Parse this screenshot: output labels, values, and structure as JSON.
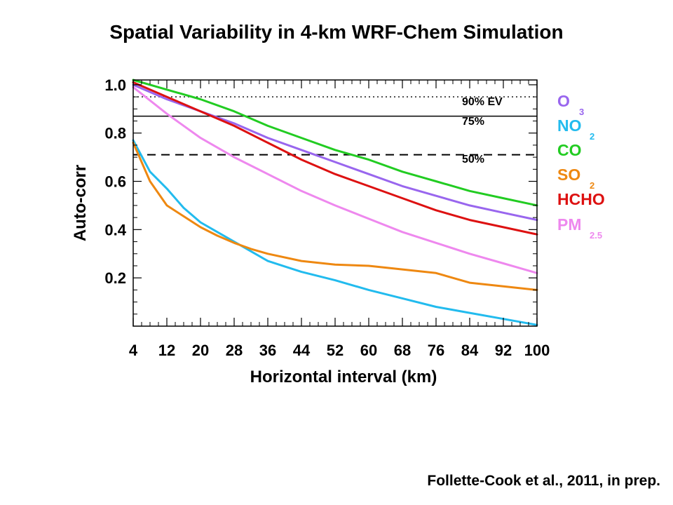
{
  "title": "Spatial Variability in 4-km WRF-Chem Simulation",
  "citation": "Follette-Cook et al., 2011, in prep.",
  "chart_data": {
    "type": "line",
    "title": "Spatial Variability in 4-km WRF-Chem Simulation",
    "xlabel": "Horizontal interval (km)",
    "ylabel": "Auto-corr",
    "xlim": [
      4,
      100
    ],
    "ylim": [
      0,
      1.02
    ],
    "xticks": [
      4,
      12,
      20,
      28,
      36,
      44,
      52,
      60,
      68,
      76,
      84,
      92,
      100
    ],
    "xtick_labels": [
      "4",
      "12",
      "20",
      "28",
      "36",
      "44",
      "52",
      "60",
      "68",
      "76",
      "84",
      "92",
      "100"
    ],
    "yticks": [
      0.2,
      0.4,
      0.6,
      0.8,
      1.0
    ],
    "ytick_labels": [
      "0.2",
      "0.4",
      "0.6",
      "0.8",
      "1.0"
    ],
    "reference_lines": [
      {
        "label": "90% EV",
        "y": 0.95,
        "style": "dotted"
      },
      {
        "label": "75%",
        "y": 0.87,
        "style": "solid"
      },
      {
        "label": "50%",
        "y": 0.71,
        "style": "dashed"
      }
    ],
    "legend_placement": "right",
    "series": [
      {
        "name": "O3",
        "label_main": "O",
        "label_sub": "3",
        "color": "#9966ee",
        "x": [
          4,
          12,
          20,
          28,
          36,
          44,
          52,
          60,
          68,
          76,
          84,
          92,
          100
        ],
        "values": [
          1.0,
          0.94,
          0.89,
          0.84,
          0.78,
          0.73,
          0.68,
          0.63,
          0.58,
          0.54,
          0.5,
          0.47,
          0.44
        ]
      },
      {
        "name": "NO2",
        "label_main": "NO",
        "label_sub": "2",
        "color": "#22bbee",
        "x": [
          4,
          8,
          12,
          16,
          20,
          24,
          28,
          32,
          36,
          44,
          52,
          60,
          68,
          76,
          84,
          92,
          100
        ],
        "values": [
          0.77,
          0.64,
          0.57,
          0.49,
          0.43,
          0.39,
          0.35,
          0.31,
          0.27,
          0.225,
          0.19,
          0.15,
          0.115,
          0.08,
          0.055,
          0.03,
          0.005
        ]
      },
      {
        "name": "CO",
        "label_main": "CO",
        "label_sub": "",
        "color": "#22cc22",
        "x": [
          4,
          12,
          20,
          28,
          36,
          44,
          52,
          60,
          68,
          76,
          84,
          92,
          100
        ],
        "values": [
          1.02,
          0.98,
          0.94,
          0.89,
          0.83,
          0.78,
          0.73,
          0.69,
          0.64,
          0.6,
          0.56,
          0.53,
          0.5
        ]
      },
      {
        "name": "SO2",
        "label_main": "SO",
        "label_sub": "2",
        "color": "#ee8811",
        "x": [
          4,
          8,
          12,
          16,
          20,
          24,
          28,
          32,
          36,
          44,
          52,
          60,
          68,
          76,
          84,
          92,
          100
        ],
        "values": [
          0.76,
          0.6,
          0.5,
          0.455,
          0.41,
          0.375,
          0.345,
          0.32,
          0.3,
          0.27,
          0.255,
          0.25,
          0.235,
          0.22,
          0.18,
          0.165,
          0.15
        ]
      },
      {
        "name": "HCHO",
        "label_main": "HCHO",
        "label_sub": "",
        "color": "#dd1111",
        "x": [
          4,
          12,
          20,
          28,
          36,
          44,
          52,
          60,
          68,
          76,
          84,
          92,
          100
        ],
        "values": [
          1.01,
          0.95,
          0.89,
          0.83,
          0.76,
          0.69,
          0.63,
          0.58,
          0.53,
          0.48,
          0.44,
          0.41,
          0.38
        ]
      },
      {
        "name": "PM2.5",
        "label_main": "PM",
        "label_sub": "2.5",
        "color": "#ee88ee",
        "x": [
          4,
          12,
          20,
          28,
          36,
          44,
          52,
          60,
          68,
          76,
          84,
          92,
          100
        ],
        "values": [
          0.99,
          0.88,
          0.78,
          0.7,
          0.63,
          0.56,
          0.5,
          0.445,
          0.39,
          0.345,
          0.3,
          0.26,
          0.22
        ]
      }
    ]
  }
}
